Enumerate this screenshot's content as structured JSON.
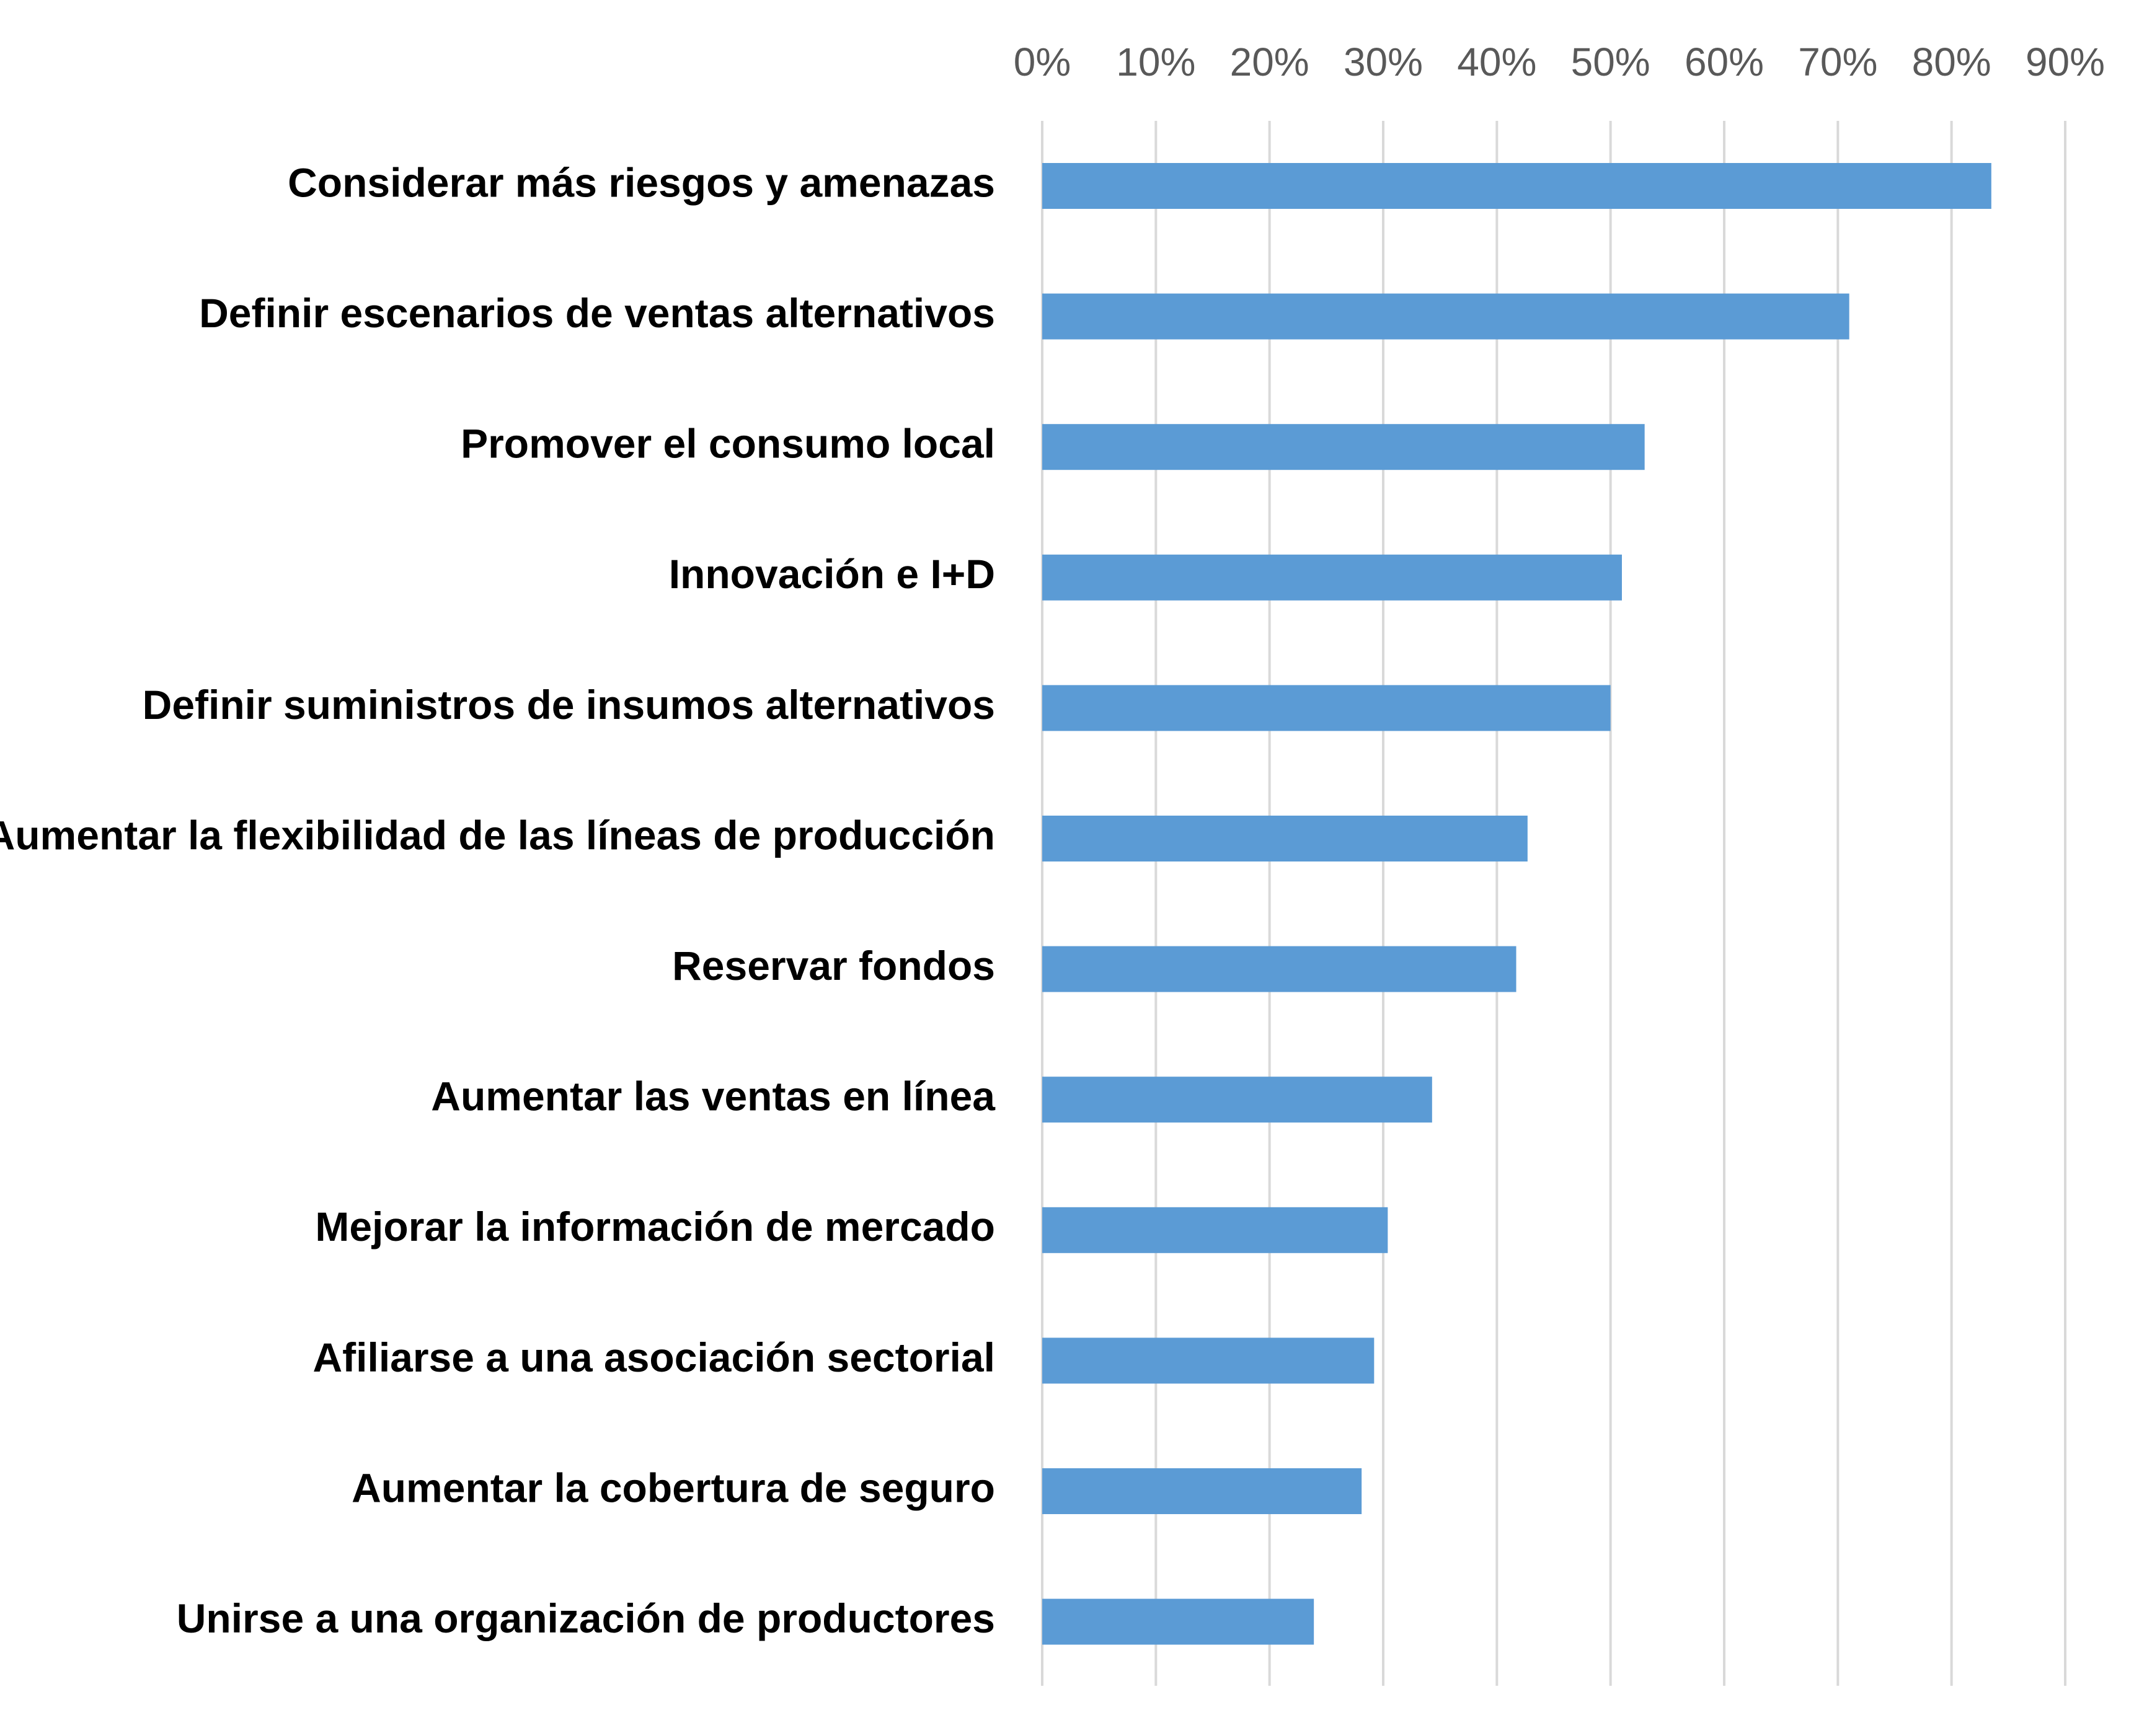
{
  "chart_data": {
    "type": "bar",
    "orientation": "horizontal",
    "title": "",
    "xlabel": "",
    "ylabel": "",
    "categories": [
      "Considerar más riesgos y amenazas",
      "Definir escenarios de ventas alternativos",
      "Promover el consumo local",
      "Innovación e I+D",
      "Definir suministros de insumos alternativos",
      "Aumentar la flexibilidad de las líneas de producción",
      "Reservar fondos",
      "Aumentar las ventas en línea",
      "Mejorar la información de mercado",
      "Afiliarse a una asociación sectorial",
      "Aumentar la cobertura de seguro",
      "Unirse a una organización de productores"
    ],
    "values": [
      83.5,
      71,
      53,
      51,
      50,
      42.7,
      41.7,
      34.3,
      30.4,
      29.2,
      28.1,
      23.9
    ],
    "xlim": [
      0,
      90
    ],
    "x_ticks": [
      0,
      10,
      20,
      30,
      40,
      50,
      60,
      70,
      80,
      90
    ],
    "x_tick_labels": [
      "0%",
      "10%",
      "20%",
      "30%",
      "40%",
      "50%",
      "60%",
      "70%",
      "80%",
      "90%"
    ],
    "x_axis_position": "top",
    "grid": true,
    "legend": "none",
    "bar_color": "#5b9bd5"
  }
}
